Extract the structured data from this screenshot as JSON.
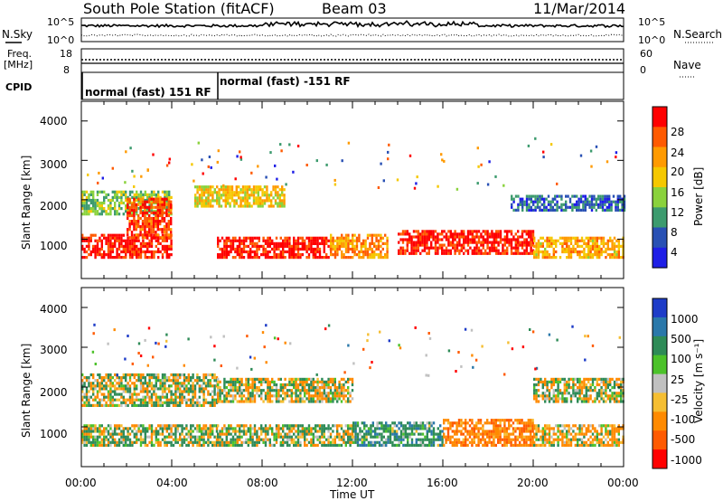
{
  "header": {
    "station": "South Pole Station (fitACF)",
    "beam": "Beam 03",
    "date": "11/Mar/2014"
  },
  "noise_panel": {
    "left_label": "N.Sky",
    "right_label": "N.Search",
    "left_ticks": [
      "10^5",
      "10^0"
    ],
    "right_ticks": [
      "10^5",
      "10^0"
    ]
  },
  "freq_panel": {
    "left_label_line1": "Freq.",
    "left_label_line2": "[MHz]",
    "right_label": "Nave",
    "left_ticks": [
      "18",
      "8"
    ],
    "right_ticks": [
      "60",
      "0"
    ]
  },
  "cpid_panel": {
    "label": "CPID",
    "segments": [
      {
        "name": "normal (fast) 151 RF",
        "start_hour": 0
      },
      {
        "name": "normal (fast) -151 RF",
        "start_hour": 6
      }
    ]
  },
  "power_panel": {
    "ylabel": "Slant Range [km]",
    "yticks": [
      "4000",
      "3000",
      "2000",
      "1000"
    ],
    "colorbar_label": "Power [dB]",
    "colorbar_ticks": [
      "28",
      "24",
      "20",
      "16",
      "12",
      "8",
      "4"
    ],
    "colors": [
      "#ff0000",
      "#ff5a00",
      "#ff9a00",
      "#f5c800",
      "#8ad23c",
      "#3c9b6e",
      "#2850b4",
      "#1e1ee6"
    ]
  },
  "velocity_panel": {
    "ylabel": "Slant Range [km]",
    "yticks": [
      "4000",
      "3000",
      "2000",
      "1000"
    ],
    "colorbar_label": "Velocity [m s⁻¹]",
    "colorbar_ticks": [
      "1000",
      "500",
      "100",
      "25",
      "-25",
      "-100",
      "-500",
      "-1000"
    ],
    "colors": [
      "#1e3cc8",
      "#2a78aa",
      "#2e8b57",
      "#4cc22a",
      "#c0c0c0",
      "#f5be32",
      "#ff8a00",
      "#ff5a00",
      "#ff0000"
    ]
  },
  "xaxis": {
    "ticks": [
      "00:00",
      "04:00",
      "08:00",
      "12:00",
      "16:00",
      "20:00",
      "00:00"
    ],
    "label": "Time UT"
  },
  "chart_data": [
    {
      "type": "heatmap",
      "title": "Power",
      "x": "time UT (hours)",
      "xlim": [
        0,
        24
      ],
      "ylim": [
        0,
        4500
      ],
      "ylabel": "Slant Range [km]",
      "colorbar": {
        "label": "Power [dB]",
        "ticks": [
          4,
          8,
          12,
          16,
          20,
          24,
          28
        ]
      },
      "bands": [
        {
          "t": [
            0,
            4
          ],
          "range_km": [
            500,
            1100
          ],
          "value_db": 28
        },
        {
          "t": [
            0,
            4
          ],
          "range_km": [
            1600,
            2200
          ],
          "value_db": 14
        },
        {
          "t": [
            2,
            4
          ],
          "range_km": [
            1000,
            2000
          ],
          "value_db": 26
        },
        {
          "t": [
            5,
            9
          ],
          "range_km": [
            1800,
            2300
          ],
          "value_db": 18
        },
        {
          "t": [
            6,
            11
          ],
          "range_km": [
            500,
            1000
          ],
          "value_db": 28
        },
        {
          "t": [
            11,
            13.5
          ],
          "range_km": [
            500,
            1100
          ],
          "value_db": 22
        },
        {
          "t": [
            14,
            20
          ],
          "range_km": [
            600,
            1200
          ],
          "value_db": 28
        },
        {
          "t": [
            19,
            24
          ],
          "range_km": [
            1700,
            2100
          ],
          "value_db": 8
        },
        {
          "t": [
            20,
            24
          ],
          "range_km": [
            500,
            1000
          ],
          "value_db": 20
        }
      ]
    },
    {
      "type": "heatmap",
      "title": "Velocity",
      "x": "time UT (hours)",
      "xlim": [
        0,
        24
      ],
      "ylim": [
        0,
        4500
      ],
      "ylabel": "Slant Range [km]",
      "colorbar": {
        "label": "Velocity [m s⁻¹]",
        "ticks": [
          1000,
          500,
          100,
          25,
          -25,
          -100,
          -500,
          -1000
        ]
      },
      "bands": [
        {
          "t": [
            0,
            6
          ],
          "range_km": [
            1500,
            2300
          ],
          "value_ms": 0
        },
        {
          "t": [
            0,
            6
          ],
          "range_km": [
            500,
            1000
          ],
          "value_ms": 80
        },
        {
          "t": [
            6,
            12
          ],
          "range_km": [
            500,
            1000
          ],
          "value_ms": 50
        },
        {
          "t": [
            6,
            12
          ],
          "range_km": [
            1600,
            2200
          ],
          "value_ms": 0
        },
        {
          "t": [
            12,
            16
          ],
          "range_km": [
            500,
            1100
          ],
          "value_ms": 300
        },
        {
          "t": [
            16,
            20
          ],
          "range_km": [
            500,
            1200
          ],
          "value_ms": -400
        },
        {
          "t": [
            20,
            24
          ],
          "range_km": [
            1600,
            2200
          ],
          "value_ms": 0
        },
        {
          "t": [
            20,
            24
          ],
          "range_km": [
            500,
            1000
          ],
          "value_ms": -150
        }
      ]
    }
  ]
}
